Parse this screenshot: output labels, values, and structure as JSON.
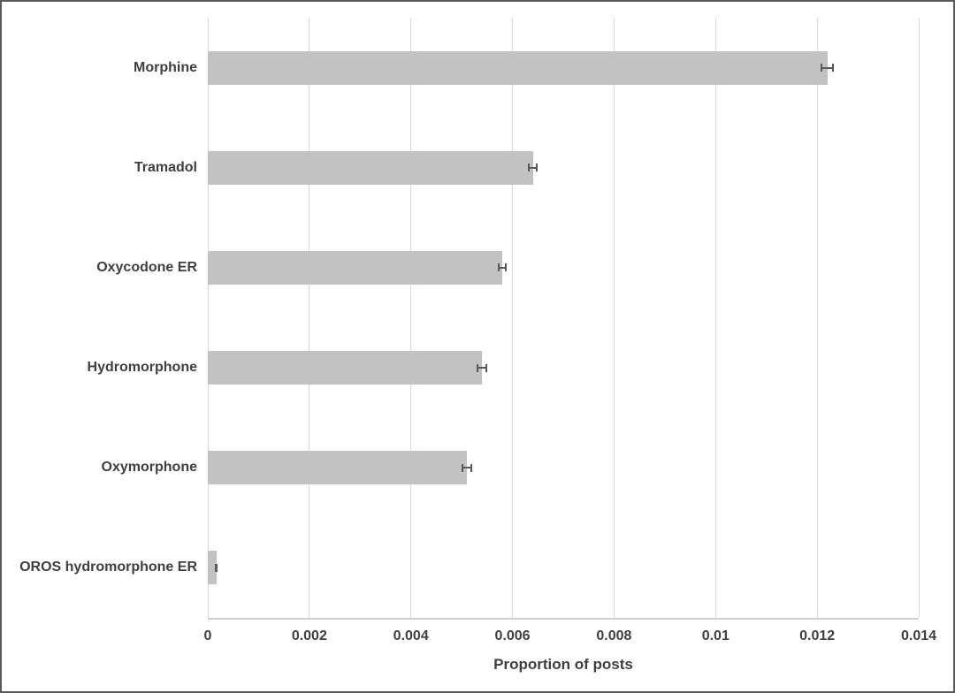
{
  "figure": {
    "background_color": "#ffffff",
    "border_color": "#5a5a5a"
  },
  "chart_data": {
    "type": "bar",
    "orientation": "horizontal",
    "title": "",
    "xlabel": "Proportion of posts",
    "ylabel": "",
    "categories": [
      "Morphine",
      "Tramadol",
      "Oxycodone ER",
      "Hydromorphone",
      "Oxymorphone",
      "OROS hydromorphone ER"
    ],
    "values": [
      0.0122,
      0.0064,
      0.0058,
      0.0054,
      0.0051,
      0.00017
    ],
    "error_bars": [
      0.00013,
      0.0001,
      8e-05,
      0.0001,
      0.0001,
      3e-05
    ],
    "xlim": [
      0,
      0.014
    ],
    "xticks": [
      0,
      0.002,
      0.004,
      0.006,
      0.008,
      0.01,
      0.012,
      0.014
    ],
    "xtick_labels": [
      "0",
      "0.002",
      "0.004",
      "0.006",
      "0.008",
      "0.01",
      "0.012",
      "0.014"
    ],
    "grid": "vertical",
    "legend_position": "none",
    "bar_color": "#c2c2c2",
    "error_bar_color": "#595959",
    "gridline_color": "#d9d9d9",
    "axis_line_color": "#cfcfcf",
    "text_color": "#3f3f3f"
  }
}
